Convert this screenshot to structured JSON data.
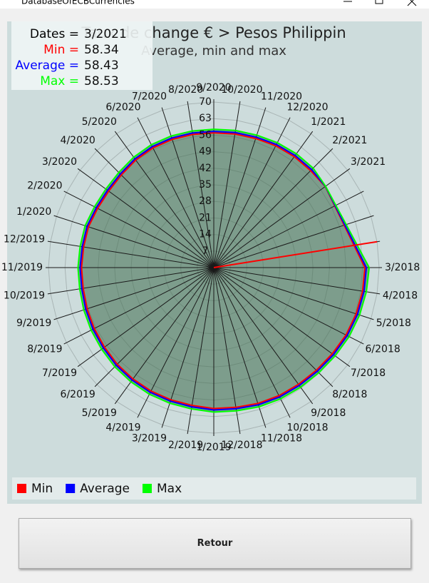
{
  "window": {
    "title": "DatabaseOfECBCurrencies"
  },
  "chart_data": {
    "type": "radar",
    "title": "Taux de change € > Pesos Philippin",
    "subtitle": "Average, min and max",
    "categories": [
      "3/2018",
      "4/2018",
      "5/2018",
      "6/2018",
      "7/2018",
      "8/2018",
      "9/2018",
      "10/2018",
      "11/2018",
      "12/2018",
      "1/2019",
      "2/2019",
      "3/2019",
      "4/2019",
      "5/2019",
      "6/2019",
      "7/2019",
      "8/2019",
      "9/2019",
      "10/2019",
      "11/2019",
      "12/2019",
      "1/2020",
      "2/2020",
      "3/2020",
      "4/2020",
      "5/2020",
      "6/2020",
      "7/2020",
      "8/2020",
      "9/2020",
      "10/2020",
      "11/2020",
      "12/2020",
      "1/2021",
      "2/2021",
      "3/2021",
      null,
      null,
      null
    ],
    "series": [
      {
        "name": "Min",
        "color": "#ff0000",
        "values": [
          64.0,
          63.8,
          63.4,
          62.8,
          62.0,
          61.4,
          61.0,
          60.8,
          60.4,
          59.8,
          59.6,
          59.0,
          58.8,
          58.6,
          58.2,
          57.8,
          57.2,
          56.8,
          56.4,
          56.0,
          56.0,
          55.8,
          55.8,
          55.2,
          55.0,
          55.4,
          56.2,
          56.8,
          57.0,
          57.0,
          57.0,
          57.2,
          57.4,
          57.8,
          58.0,
          58.0,
          58.34,
          null,
          null,
          null
        ]
      },
      {
        "name": "Average",
        "color": "#0000ff",
        "values": [
          64.6,
          64.4,
          64.0,
          63.4,
          62.6,
          62.0,
          61.6,
          61.4,
          61.0,
          60.4,
          60.2,
          59.6,
          59.4,
          59.2,
          58.8,
          58.4,
          57.8,
          57.4,
          57.0,
          56.6,
          56.6,
          56.4,
          56.4,
          55.8,
          55.6,
          56.0,
          56.8,
          57.4,
          57.6,
          57.6,
          57.6,
          57.8,
          58.0,
          58.4,
          58.6,
          58.6,
          58.43,
          null,
          null,
          null
        ]
      },
      {
        "name": "Max",
        "color": "#00ff00",
        "values": [
          65.8,
          65.4,
          64.9,
          64.3,
          63.5,
          62.9,
          62.5,
          62.3,
          61.9,
          61.3,
          61.1,
          60.5,
          60.3,
          60.1,
          59.7,
          59.3,
          58.7,
          58.3,
          57.9,
          57.5,
          57.5,
          57.3,
          57.3,
          56.7,
          56.5,
          56.9,
          57.7,
          58.3,
          58.5,
          58.5,
          58.5,
          58.7,
          58.9,
          59.3,
          59.5,
          59.5,
          58.53,
          null,
          null,
          null
        ]
      }
    ],
    "rlim": [
      0,
      70
    ],
    "rticks": [
      7,
      14,
      21,
      28,
      35,
      42,
      49,
      56,
      63,
      70
    ],
    "grid": true,
    "legend": "bottom"
  },
  "tooltip": {
    "rows": [
      {
        "label": "Dates =",
        "value": "3/2021",
        "color": "#000000"
      },
      {
        "label": "Min =",
        "value": "58.34",
        "color": "#ff0000"
      },
      {
        "label": "Average =",
        "value": "58.43",
        "color": "#0000ff"
      },
      {
        "label": "Max =",
        "value": "58.53",
        "color": "#00ff00"
      }
    ]
  },
  "button": {
    "label": "Retour"
  }
}
